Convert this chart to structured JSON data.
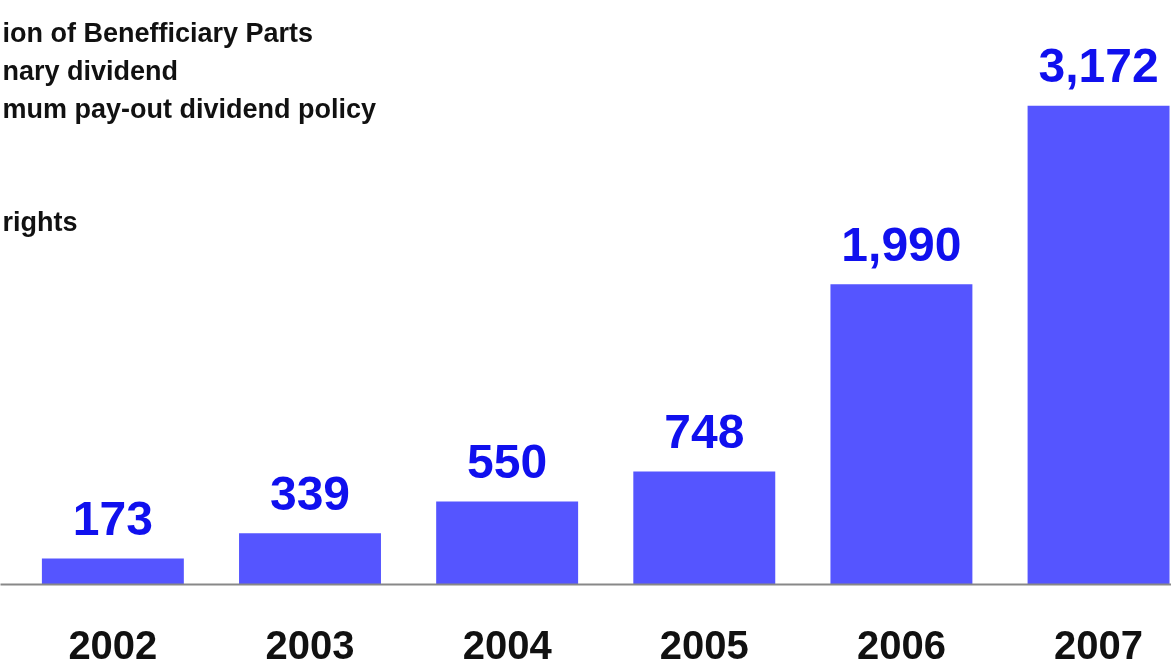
{
  "chart_data": {
    "type": "bar",
    "categories": [
      "2002",
      "2003",
      "2004",
      "2005",
      "2006",
      "2007"
    ],
    "values": [
      173,
      339,
      550,
      748,
      1990,
      3172
    ],
    "value_labels": [
      "173",
      "339",
      "550",
      "748",
      "1,990",
      "3,172"
    ],
    "color": "#5555ff",
    "annotations": [
      "ion of Benefficiary Parts",
      "nary dividend",
      "mum pay-out dividend policy",
      "rights"
    ],
    "grid": false
  }
}
